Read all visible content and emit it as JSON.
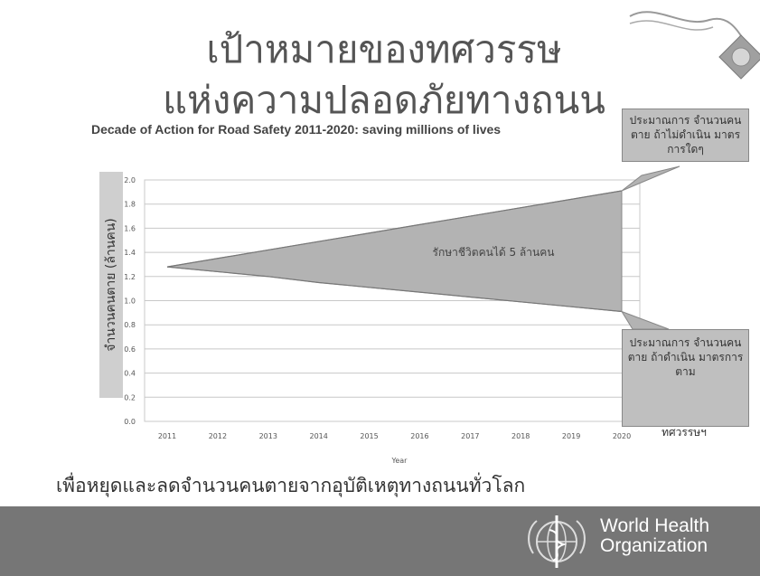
{
  "title_line1": "เป้าหมายของทศวรรษ",
  "title_line2": "แห่งความปลอดภัยทางถนน",
  "chart_data": {
    "type": "area",
    "title": "Decade of Action for Road Safety 2011-2020: saving millions of lives",
    "xlabel": "Year",
    "ylabel": "จำนวนคนตาย (ล้านคน)",
    "x": [
      2011,
      2012,
      2013,
      2014,
      2015,
      2016,
      2017,
      2018,
      2019,
      2020
    ],
    "ylim": [
      0,
      2.0
    ],
    "yticks": [
      0,
      0.2,
      0.4,
      0.6,
      0.8,
      1.0,
      1.2,
      1.4,
      1.6,
      1.8,
      2.0
    ],
    "series": [
      {
        "values": [
          1.28,
          1.35,
          1.42,
          1.49,
          1.56,
          1.63,
          1.7,
          1.77,
          1.84,
          1.91
        ]
      },
      {
        "values": [
          1.28,
          1.24,
          1.2,
          1.15,
          1.11,
          1.07,
          1.03,
          0.99,
          0.95,
          0.91
        ]
      }
    ],
    "area_label": "รักษาชีวิตคนได้   5 ล้านคน",
    "grid": true,
    "fill_color": "#b3b3b3",
    "grid_color": "#c8c8c8"
  },
  "callout_top": "ประมาณการ จำนวนคนตาย ถ้าไม่ดำเนิน มาตรการใดๆ",
  "callout_bottom": "ประมาณการ จำนวนคนตาย ถ้าดำเนิน มาตรการตาม",
  "callout_bottom_extra": "ทศวรรษฯ",
  "footer_text": "เพื่อหยุดและลดจำนวนคนตายจากอุบัติเหตุทางถนนทั่วโลก",
  "who_line1": "World Health",
  "who_line2": "Organization",
  "colors": {
    "footer_band": "#767676",
    "callout_bg": "#bfbfbf"
  }
}
